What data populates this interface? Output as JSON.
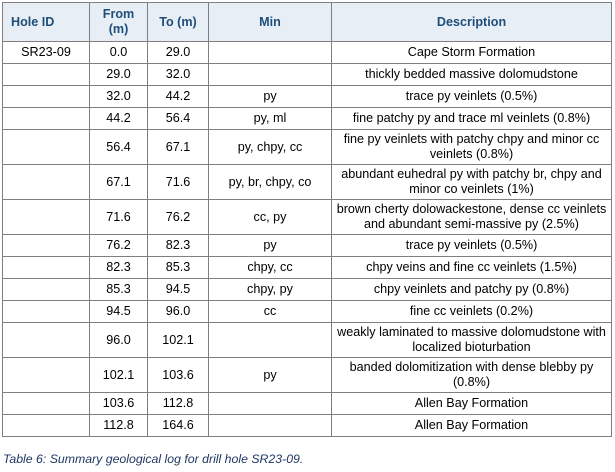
{
  "table": {
    "headers": [
      "Hole ID",
      "From (m)",
      "To (m)",
      "Min",
      "Description"
    ],
    "rows": [
      {
        "hole": "SR23-09",
        "from": "0.0",
        "to": "29.0",
        "min": "",
        "desc": "Cape Storm Formation"
      },
      {
        "hole": "",
        "from": "29.0",
        "to": "32.0",
        "min": "",
        "desc": "thickly bedded massive dolomudstone"
      },
      {
        "hole": "",
        "from": "32.0",
        "to": "44.2",
        "min": "py",
        "desc": "trace py veinlets (0.5%)"
      },
      {
        "hole": "",
        "from": "44.2",
        "to": "56.4",
        "min": "py, ml",
        "desc": "fine patchy py and trace ml veinlets (0.8%)"
      },
      {
        "hole": "",
        "from": "56.4",
        "to": "67.1",
        "min": "py, chpy, cc",
        "desc": "fine py veinlets with patchy chpy and minor cc veinlets (0.8%)"
      },
      {
        "hole": "",
        "from": "67.1",
        "to": "71.6",
        "min": "py, br, chpy, co",
        "desc": "abundant euhedral py with patchy br, chpy and minor co veinlets (1%)"
      },
      {
        "hole": "",
        "from": "71.6",
        "to": "76.2",
        "min": "cc, py",
        "desc": "brown cherty dolowackestone, dense cc veinlets and abundant semi-massive py (2.5%)"
      },
      {
        "hole": "",
        "from": "76.2",
        "to": "82.3",
        "min": "py",
        "desc": "trace py veinlets (0.5%)"
      },
      {
        "hole": "",
        "from": "82.3",
        "to": "85.3",
        "min": "chpy, cc",
        "desc": "chpy veins and fine cc veinlets (1.5%)"
      },
      {
        "hole": "",
        "from": "85.3",
        "to": "94.5",
        "min": "chpy, py",
        "desc": "chpy veinlets and patchy py (0.8%)"
      },
      {
        "hole": "",
        "from": "94.5",
        "to": "96.0",
        "min": "cc",
        "desc": "fine cc veinlets (0.2%)"
      },
      {
        "hole": "",
        "from": "96.0",
        "to": "102.1",
        "min": "",
        "desc": "weakly laminated to massive dolomudstone with localized bioturbation"
      },
      {
        "hole": "",
        "from": "102.1",
        "to": "103.6",
        "min": "py",
        "desc": "banded dolomitization with dense blebby py (0.8%)"
      },
      {
        "hole": "",
        "from": "103.6",
        "to": "112.8",
        "min": "",
        "desc": "Allen Bay Formation"
      },
      {
        "hole": "",
        "from": "112.8",
        "to": "164.6",
        "min": "",
        "desc": "Allen Bay Formation"
      }
    ]
  },
  "caption": "Table 6: Summary geological log for drill hole SR23-09."
}
